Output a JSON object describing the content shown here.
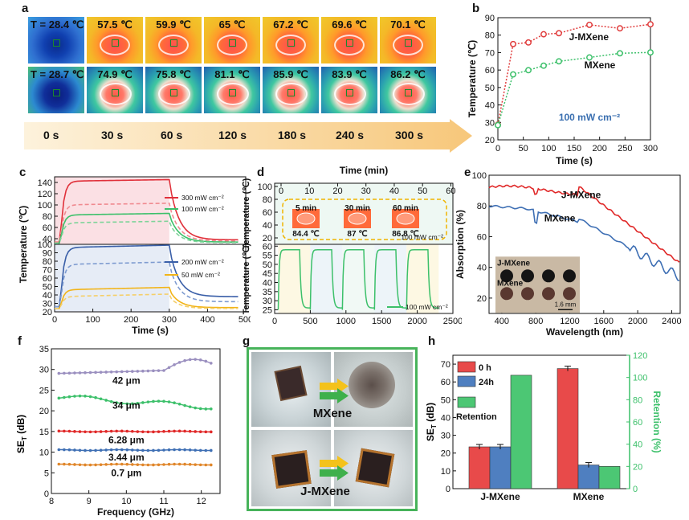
{
  "panel_letters": [
    "a",
    "b",
    "c",
    "d",
    "e",
    "f",
    "g",
    "h"
  ],
  "panel_a": {
    "row1": [
      "T = 28.4 ℃",
      "57.5 ℃",
      "59.9 ℃",
      "65 ℃",
      "67.2 ℃",
      "69.6 ℃",
      "70.1 ℃"
    ],
    "row2": [
      "T = 28.7 ℃",
      "74.9 ℃",
      "75.8 ℃",
      "81.1 ℃",
      "85.9 ℃",
      "83.9 ℃",
      "86.2 ℃"
    ],
    "times": [
      "0 s",
      "30 s",
      "60 s",
      "120 s",
      "180 s",
      "240 s",
      "300 s"
    ]
  },
  "panel_b": {
    "chart_data": {
      "type": "line",
      "xlabel": "Time (s)",
      "ylabel": "Temperature (℃)",
      "x": [
        0,
        30,
        60,
        90,
        120,
        180,
        240,
        300
      ],
      "xlim": [
        0,
        300
      ],
      "ylim": [
        20,
        90
      ],
      "xticks": [
        "0",
        "50",
        "100",
        "150",
        "200",
        "250",
        "300"
      ],
      "yticks": [
        "20",
        "30",
        "40",
        "50",
        "60",
        "70",
        "80",
        "90"
      ],
      "annotation": "100 mW cm⁻²",
      "series": [
        {
          "name": "J-MXene",
          "values": [
            28.7,
            74.9,
            75.8,
            80.5,
            81.1,
            85.9,
            83.9,
            86.2
          ],
          "color": "#e03c3c"
        },
        {
          "name": "MXene",
          "values": [
            28.4,
            57.5,
            59.9,
            62.5,
            65,
            67.2,
            69.6,
            70.1
          ],
          "color": "#3cc06a"
        }
      ]
    }
  },
  "panel_c": {
    "chart_data": {
      "type": "line",
      "xlabel": "Time (s)",
      "ylabel": "Temperature (℃)",
      "xticks": [
        "0",
        "100",
        "200",
        "300",
        "400",
        "500"
      ],
      "top_yticks": [
        "40",
        "60",
        "80",
        "100",
        "120",
        "140"
      ],
      "bottom_yticks": [
        "20",
        "30",
        "40",
        "50",
        "60",
        "70",
        "80",
        "90",
        "100"
      ],
      "legend_top": [
        "300 mW cm⁻²",
        "100 mW cm⁻²"
      ],
      "legend_bottom": [
        "200 mW cm⁻²",
        "50 mW cm⁻²"
      ]
    }
  },
  "panel_d": {
    "chart_data": {
      "type": "line",
      "top_xlabel": "Time (min)",
      "top_xticks": [
        "0",
        "10",
        "20",
        "30",
        "40",
        "50",
        "60"
      ],
      "top_yticks": [
        "20",
        "40",
        "60",
        "80",
        "100"
      ],
      "bottom_xticks": [
        "0",
        "500",
        "1000",
        "1500",
        "2000",
        "2500"
      ],
      "bottom_yticks": [
        "25",
        "30",
        "35",
        "40",
        "45",
        "50",
        "55",
        "60"
      ],
      "ylabel_top": "Temperature (℃)",
      "ylabel_bottom": "Temperature (℃)",
      "insets": [
        {
          "label": "5 min",
          "temp": "84.4 ℃"
        },
        {
          "label": "30 min",
          "temp": "87 ℃"
        },
        {
          "label": "60 min",
          "temp": "86.8 ℃"
        }
      ],
      "inset_note": "100 mW cm⁻²",
      "legend": "100 mW cm⁻²"
    }
  },
  "panel_e": {
    "chart_data": {
      "type": "line",
      "xlabel": "Wavelength (nm)",
      "ylabel": "Absorption (%)",
      "xticks": [
        "400",
        "800",
        "1200",
        "1600",
        "2000",
        "2400"
      ],
      "yticks": [
        "20",
        "40",
        "60",
        "80",
        "100"
      ],
      "series_labels": [
        "J-MXene",
        "MXene"
      ],
      "inset_labels": [
        "J-MXene",
        "MXene"
      ],
      "scale": "1.6 mm"
    }
  },
  "panel_f": {
    "chart_data": {
      "type": "line",
      "xlabel": "Frequency (GHz)",
      "ylabel": "SE",
      "ylabel_sub": "T",
      "ylabel_unit": " (dB)",
      "xticks": [
        "8",
        "9",
        "10",
        "11",
        "12"
      ],
      "yticks": [
        "0",
        "5",
        "10",
        "15",
        "20",
        "25",
        "30",
        "35"
      ],
      "series_labels": [
        "42 μm",
        "34 μm",
        "6.28 μm",
        "3.44 μm",
        "0.7 μm"
      ]
    }
  },
  "panel_g": {
    "labels": [
      "MXene",
      "J-MXene"
    ]
  },
  "panel_h": {
    "chart_data": {
      "type": "bar",
      "categories": [
        "J-MXene",
        "MXene"
      ],
      "ylabel_left": "SE",
      "ylabel_left_sub": "T",
      "ylabel_left_unit": " (dB)",
      "ylabel_right": "Retention (%)",
      "left_yticks": [
        "0",
        "10",
        "20",
        "30",
        "40",
        "50",
        "60",
        "70"
      ],
      "right_yticks": [
        "0",
        "20",
        "40",
        "60",
        "80",
        "100",
        "120"
      ],
      "legend": [
        "0 h",
        "24h",
        "Retention"
      ],
      "series": [
        {
          "name": "0 h",
          "values": [
            23.5,
            67.5
          ],
          "color": "#e84a4a"
        },
        {
          "name": "24h",
          "values": [
            23.5,
            13.3
          ],
          "color": "#4f7fc0"
        },
        {
          "name": "Retention",
          "values": [
            102,
            20
          ],
          "color": "#4cc774"
        }
      ]
    }
  }
}
